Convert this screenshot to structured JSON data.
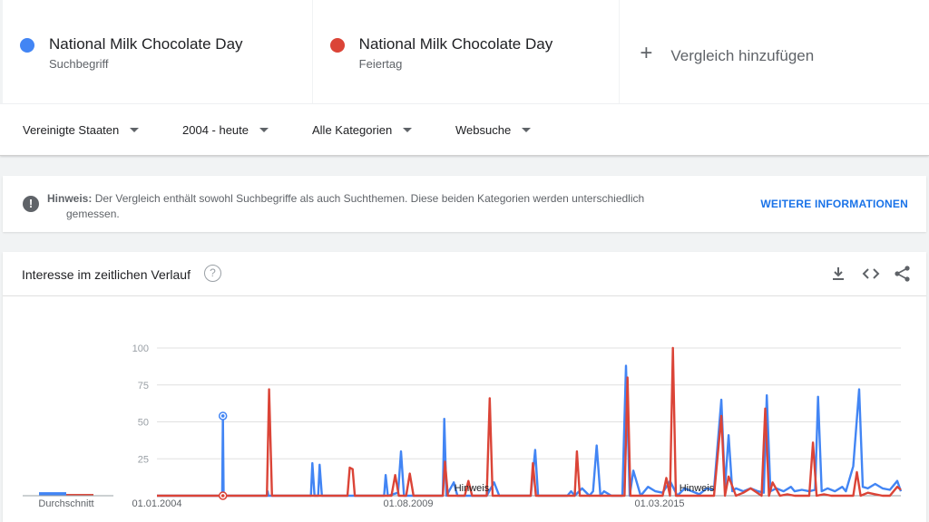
{
  "compare": {
    "terms": [
      {
        "title": "National Milk Chocolate Day",
        "subtitle": "Suchbegriff",
        "color": "#4285f4"
      },
      {
        "title": "National Milk Chocolate Day",
        "subtitle": "Feiertag",
        "color": "#db4437"
      }
    ],
    "add_label": "Vergleich hinzufügen",
    "add_icon": "plus-icon"
  },
  "filters": {
    "region": "Vereinigte Staaten",
    "time": "2004 - heute",
    "category": "Alle Kategorien",
    "search_type": "Websuche"
  },
  "notice": {
    "label": "Hinweis:",
    "text_line1": "Der Vergleich enthält sowohl Suchbegriffe als auch Suchthemen. Diese beiden Kategorien werden unterschiedlich",
    "text_line2": "gemessen.",
    "link": "WEITERE INFORMATIONEN",
    "icon": "exclamation-icon"
  },
  "chart_card": {
    "title": "Interesse im zeitlichen Verlauf",
    "help_icon": "question-icon",
    "tools": [
      "download-icon",
      "embed-icon",
      "share-icon"
    ],
    "average_label": "Durchschnitt"
  },
  "chart_data": {
    "type": "line",
    "ylim": [
      0,
      100
    ],
    "y_ticks": [
      "100",
      "75",
      "50",
      "25"
    ],
    "x_tick_labels": [
      "01.01.2004",
      "01.08.2009",
      "01.03.2015"
    ],
    "annotations": [
      "Hinweis",
      "Hinweis"
    ],
    "series": [
      {
        "name": "National Milk Chocolate Day",
        "color": "#4285f4",
        "average": 6,
        "points": [
          [
            0,
            0
          ],
          [
            8,
            0
          ],
          [
            8.9,
            0
          ],
          [
            9,
            54
          ],
          [
            9.1,
            0
          ],
          [
            15,
            0
          ],
          [
            15.1,
            3
          ],
          [
            15.2,
            0
          ],
          [
            21,
            0
          ],
          [
            21.2,
            22
          ],
          [
            21.5,
            0
          ],
          [
            22,
            0
          ],
          [
            22.2,
            21
          ],
          [
            22.5,
            0
          ],
          [
            27,
            0
          ],
          [
            31,
            0
          ],
          [
            31.2,
            14
          ],
          [
            31.5,
            0
          ],
          [
            32.9,
            2
          ],
          [
            33.3,
            30
          ],
          [
            33.7,
            0
          ],
          [
            37,
            0
          ],
          [
            39,
            0
          ],
          [
            39.2,
            52
          ],
          [
            39.5,
            0
          ],
          [
            40.5,
            9
          ],
          [
            41,
            0
          ],
          [
            45,
            0
          ],
          [
            46,
            9
          ],
          [
            46.7,
            0
          ],
          [
            51,
            0
          ],
          [
            51.6,
            31
          ],
          [
            52,
            0
          ],
          [
            56,
            0
          ],
          [
            56.5,
            3
          ],
          [
            57,
            0
          ],
          [
            58,
            5
          ],
          [
            59,
            0
          ],
          [
            59.5,
            3
          ],
          [
            60,
            34
          ],
          [
            60.5,
            0
          ],
          [
            61,
            3
          ],
          [
            62,
            0
          ],
          [
            63.5,
            0
          ],
          [
            64,
            88
          ],
          [
            64.5,
            0
          ],
          [
            65,
            17
          ],
          [
            66,
            0
          ],
          [
            67,
            6
          ],
          [
            68,
            3
          ],
          [
            69,
            2
          ],
          [
            70,
            10
          ],
          [
            71,
            0
          ],
          [
            72,
            5
          ],
          [
            73,
            3
          ],
          [
            74,
            1
          ],
          [
            75,
            5
          ],
          [
            76,
            4
          ],
          [
            77,
            65
          ],
          [
            77.5,
            5
          ],
          [
            78,
            41
          ],
          [
            78.5,
            3
          ],
          [
            79,
            5
          ],
          [
            80,
            3
          ],
          [
            81,
            5
          ],
          [
            82,
            3
          ],
          [
            82.8,
            2
          ],
          [
            83.2,
            68
          ],
          [
            83.7,
            3
          ],
          [
            84.5,
            5
          ],
          [
            85.5,
            3
          ],
          [
            86.5,
            6
          ],
          [
            87,
            3
          ],
          [
            88,
            4
          ],
          [
            89,
            3
          ],
          [
            89.8,
            4
          ],
          [
            90.2,
            67
          ],
          [
            90.7,
            3
          ],
          [
            91.5,
            5
          ],
          [
            92.5,
            3
          ],
          [
            93.5,
            6
          ],
          [
            94,
            3
          ],
          [
            95,
            20
          ],
          [
            95.8,
            72
          ],
          [
            96.3,
            6
          ],
          [
            97,
            5
          ],
          [
            98,
            8
          ],
          [
            99,
            5
          ],
          [
            100,
            4
          ],
          [
            101,
            10
          ],
          [
            101.5,
            3
          ]
        ]
      },
      {
        "name": "National Milk Chocolate Day",
        "color": "#db4437",
        "average": 3,
        "points": [
          [
            0,
            0
          ],
          [
            9,
            0
          ],
          [
            15,
            0
          ],
          [
            15.3,
            72
          ],
          [
            15.7,
            0
          ],
          [
            26,
            0
          ],
          [
            26.3,
            19
          ],
          [
            26.7,
            18
          ],
          [
            27,
            0
          ],
          [
            32,
            0
          ],
          [
            32.5,
            14
          ],
          [
            33,
            0
          ],
          [
            34,
            0
          ],
          [
            34.5,
            15
          ],
          [
            35,
            0
          ],
          [
            39,
            0
          ],
          [
            39.3,
            23
          ],
          [
            39.7,
            0
          ],
          [
            42,
            0
          ],
          [
            42.5,
            10
          ],
          [
            43,
            0
          ],
          [
            45,
            0
          ],
          [
            45.4,
            66
          ],
          [
            45.8,
            0
          ],
          [
            51,
            0
          ],
          [
            51.3,
            22
          ],
          [
            51.7,
            0
          ],
          [
            57,
            0
          ],
          [
            57.3,
            30
          ],
          [
            57.7,
            0
          ],
          [
            63.8,
            0
          ],
          [
            64.2,
            80
          ],
          [
            64.6,
            0
          ],
          [
            69,
            0
          ],
          [
            69.5,
            12
          ],
          [
            70,
            0
          ],
          [
            70,
            0
          ],
          [
            70.4,
            100
          ],
          [
            70.8,
            0
          ],
          [
            76,
            0
          ],
          [
            77,
            54
          ],
          [
            77.5,
            0
          ],
          [
            78,
            13
          ],
          [
            79,
            0
          ],
          [
            80,
            2
          ],
          [
            81,
            5
          ],
          [
            82.5,
            0
          ],
          [
            83,
            59
          ],
          [
            83.5,
            0
          ],
          [
            84,
            9
          ],
          [
            85,
            0
          ],
          [
            86,
            1
          ],
          [
            87,
            0
          ],
          [
            89,
            0
          ],
          [
            89.5,
            36
          ],
          [
            90,
            0
          ],
          [
            91,
            1
          ],
          [
            92,
            0
          ],
          [
            95,
            0
          ],
          [
            95.5,
            16
          ],
          [
            96,
            0
          ],
          [
            97,
            2
          ],
          [
            98,
            1
          ],
          [
            99,
            0
          ],
          [
            100,
            0
          ],
          [
            101,
            6
          ],
          [
            101.5,
            4
          ]
        ]
      }
    ]
  }
}
